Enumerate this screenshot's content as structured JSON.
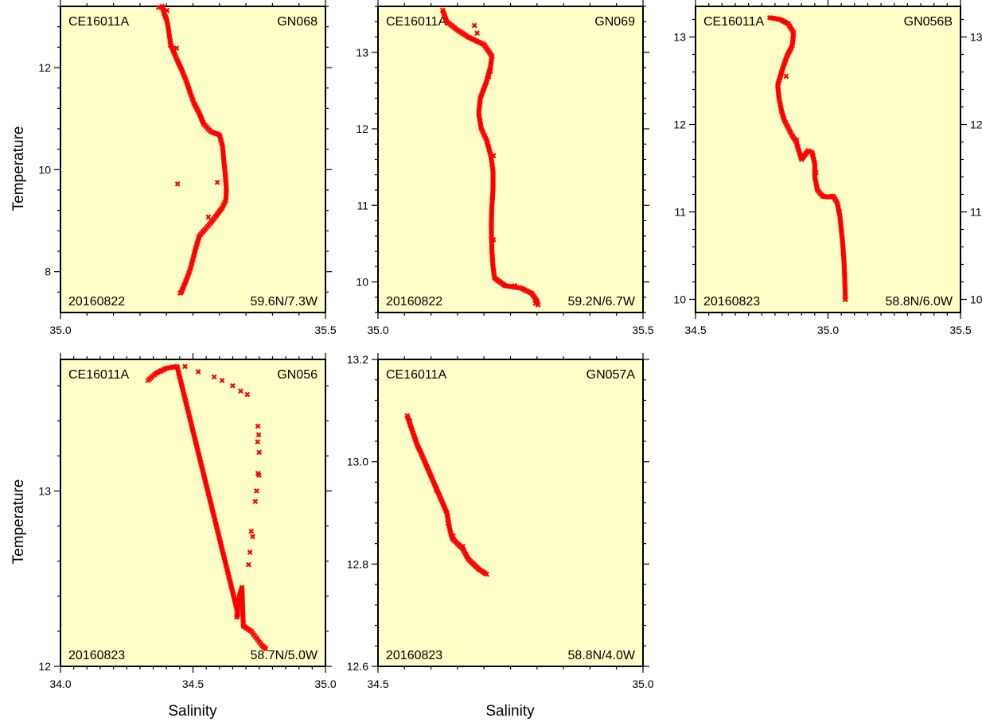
{
  "figure": {
    "ylabel_top": "Temperature",
    "ylabel_bottom": "Temperature",
    "xlabel_left": "Salinity",
    "xlabel_mid": "Salinity"
  },
  "colors": {
    "panel_bg": "#ffffc8",
    "marker": "#ff0000",
    "frame": "#000000"
  },
  "chart_data": [
    {
      "type": "scatter",
      "cruise": "CE16011A",
      "station": "GN068",
      "date": "20160822",
      "position": "59.6N/7.3W",
      "xlim": [
        35.0,
        35.5
      ],
      "ylim": [
        7.2,
        13.2
      ],
      "xticks": [
        35.0,
        35.5
      ],
      "xticklabels": [
        "35.0",
        "35.5"
      ],
      "yticks": [
        8,
        10,
        12
      ],
      "yticklabels": [
        "8",
        "10",
        "12"
      ],
      "yticks_right": false,
      "ctd": [
        [
          35.192,
          13.2
        ],
        [
          35.196,
          13.05
        ],
        [
          35.2,
          12.95
        ],
        [
          35.203,
          12.8
        ],
        [
          35.208,
          12.45
        ],
        [
          35.22,
          12.15
        ],
        [
          35.229,
          11.95
        ],
        [
          35.238,
          11.72
        ],
        [
          35.245,
          11.5
        ],
        [
          35.252,
          11.3
        ],
        [
          35.262,
          11.1
        ],
        [
          35.27,
          10.9
        ],
        [
          35.283,
          10.75
        ],
        [
          35.3,
          10.68
        ],
        [
          35.306,
          10.45
        ],
        [
          35.308,
          10.2
        ],
        [
          35.311,
          9.9
        ],
        [
          35.313,
          9.6
        ],
        [
          35.312,
          9.4
        ],
        [
          35.305,
          9.25
        ],
        [
          35.294,
          9.1
        ],
        [
          35.283,
          8.95
        ],
        [
          35.272,
          8.82
        ],
        [
          35.262,
          8.7
        ],
        [
          35.255,
          8.45
        ],
        [
          35.25,
          8.25
        ],
        [
          35.245,
          8.05
        ],
        [
          35.238,
          7.85
        ],
        [
          35.232,
          7.7
        ],
        [
          35.228,
          7.6
        ]
      ],
      "bottle": [
        [
          35.185,
          13.18
        ],
        [
          35.201,
          13.12
        ],
        [
          35.219,
          12.38
        ],
        [
          35.207,
          12.44
        ],
        [
          35.221,
          9.72
        ],
        [
          35.296,
          9.75
        ],
        [
          35.279,
          9.07
        ],
        [
          35.226,
          7.58
        ]
      ]
    },
    {
      "type": "scatter",
      "cruise": "CE16011A",
      "station": "GN069",
      "date": "20160822",
      "position": "59.2N/6.7W",
      "xlim": [
        35.0,
        35.5
      ],
      "ylim": [
        9.6,
        13.6
      ],
      "xticks": [
        35.0,
        35.5
      ],
      "xticklabels": [
        "35.0",
        "35.5"
      ],
      "yticks": [
        10,
        11,
        12,
        13
      ],
      "yticklabels": [
        "10",
        "11",
        "12",
        "13"
      ],
      "yticks_right": false,
      "ctd": [
        [
          35.122,
          13.55
        ],
        [
          35.13,
          13.4
        ],
        [
          35.148,
          13.3
        ],
        [
          35.17,
          13.2
        ],
        [
          35.2,
          13.1
        ],
        [
          35.215,
          12.95
        ],
        [
          35.212,
          12.8
        ],
        [
          35.204,
          12.6
        ],
        [
          35.193,
          12.4
        ],
        [
          35.19,
          12.2
        ],
        [
          35.195,
          12.0
        ],
        [
          35.205,
          11.85
        ],
        [
          35.213,
          11.65
        ],
        [
          35.217,
          11.45
        ],
        [
          35.217,
          11.2
        ],
        [
          35.215,
          11.0
        ],
        [
          35.214,
          10.8
        ],
        [
          35.214,
          10.6
        ],
        [
          35.215,
          10.4
        ],
        [
          35.217,
          10.2
        ],
        [
          35.22,
          10.05
        ],
        [
          35.24,
          9.95
        ],
        [
          35.27,
          9.92
        ],
        [
          35.29,
          9.85
        ],
        [
          35.3,
          9.75
        ],
        [
          35.302,
          9.7
        ]
      ],
      "bottle": [
        [
          35.182,
          13.35
        ],
        [
          35.187,
          13.25
        ],
        [
          35.212,
          12.75
        ],
        [
          35.209,
          12.68
        ],
        [
          35.218,
          11.65
        ],
        [
          35.218,
          10.55
        ],
        [
          35.258,
          9.95
        ],
        [
          35.297,
          9.72
        ]
      ]
    },
    {
      "type": "scatter",
      "cruise": "CE16011A",
      "station": "GN056B",
      "date": "20160823",
      "position": "58.8N/6.0W",
      "xlim": [
        34.5,
        35.5
      ],
      "ylim": [
        9.85,
        13.35
      ],
      "xticks": [
        34.5,
        35.0,
        35.5
      ],
      "xticklabels": [
        "34.5",
        "35.0",
        "35.5"
      ],
      "yticks": [
        10,
        11,
        12,
        13
      ],
      "yticklabels": [
        "10",
        "11",
        "12",
        "13"
      ],
      "yticks_right": true,
      "ctd": [
        [
          34.78,
          13.22
        ],
        [
          34.82,
          13.2
        ],
        [
          34.85,
          13.15
        ],
        [
          34.87,
          13.05
        ],
        [
          34.865,
          12.9
        ],
        [
          34.845,
          12.78
        ],
        [
          34.83,
          12.65
        ],
        [
          34.82,
          12.55
        ],
        [
          34.81,
          12.45
        ],
        [
          34.815,
          12.3
        ],
        [
          34.825,
          12.15
        ],
        [
          34.835,
          12.05
        ],
        [
          34.86,
          11.9
        ],
        [
          34.88,
          11.8
        ],
        [
          34.9,
          11.6
        ],
        [
          34.925,
          11.7
        ],
        [
          34.94,
          11.68
        ],
        [
          34.95,
          11.55
        ],
        [
          34.95,
          11.4
        ],
        [
          34.96,
          11.25
        ],
        [
          34.98,
          11.18
        ],
        [
          35.0,
          11.17
        ],
        [
          35.02,
          11.18
        ],
        [
          35.035,
          11.1
        ],
        [
          35.045,
          10.95
        ],
        [
          35.05,
          10.8
        ],
        [
          35.055,
          10.65
        ],
        [
          35.06,
          10.45
        ],
        [
          35.063,
          10.25
        ],
        [
          35.065,
          10.05
        ],
        [
          35.066,
          10.0
        ]
      ],
      "bottle": [
        [
          34.868,
          12.98
        ],
        [
          34.842,
          12.55
        ],
        [
          34.882,
          11.82
        ],
        [
          34.955,
          11.45
        ],
        [
          35.043,
          11.0
        ],
        [
          35.064,
          10.0
        ]
      ]
    },
    {
      "type": "scatter",
      "cruise": "CE16011A",
      "station": "GN056",
      "date": "20160823",
      "position": "58.7N/5.0W",
      "xlim": [
        34.0,
        35.0
      ],
      "ylim": [
        12.0,
        13.75
      ],
      "xticks": [
        34.0,
        34.5,
        35.0
      ],
      "xticklabels": [
        "34.0",
        "34.5",
        "35.0"
      ],
      "yticks": [
        12,
        13
      ],
      "yticklabels": [
        "12",
        "13"
      ],
      "yticks_right": false,
      "ctd": [
        [
          34.33,
          13.63
        ],
        [
          34.36,
          13.67
        ],
        [
          34.4,
          13.7
        ],
        [
          34.44,
          13.71
        ],
        [
          34.67,
          12.3
        ],
        [
          34.665,
          12.28
        ],
        [
          34.67,
          12.34
        ],
        [
          34.675,
          12.4
        ],
        [
          34.685,
          12.45
        ],
        [
          34.69,
          12.23
        ],
        [
          34.72,
          12.2
        ],
        [
          34.74,
          12.16
        ],
        [
          34.76,
          12.12
        ],
        [
          34.775,
          12.1
        ]
      ],
      "bottle": [
        [
          34.47,
          13.71
        ],
        [
          34.52,
          13.68
        ],
        [
          34.58,
          13.65
        ],
        [
          34.61,
          13.63
        ],
        [
          34.65,
          13.6
        ],
        [
          34.68,
          13.57
        ],
        [
          34.705,
          13.55
        ],
        [
          34.745,
          13.37
        ],
        [
          34.748,
          13.32
        ],
        [
          34.744,
          13.28
        ],
        [
          34.75,
          13.22
        ],
        [
          34.745,
          13.1
        ],
        [
          34.749,
          13.09
        ],
        [
          34.74,
          13.0
        ],
        [
          34.735,
          12.94
        ],
        [
          34.72,
          12.77
        ],
        [
          34.725,
          12.74
        ],
        [
          34.715,
          12.65
        ],
        [
          34.71,
          12.58
        ]
      ]
    },
    {
      "type": "scatter",
      "cruise": "CE16011A",
      "station": "GN057A",
      "date": "20160823",
      "position": "58.8N/4.0W",
      "xlim": [
        34.5,
        35.0
      ],
      "ylim": [
        12.6,
        13.2
      ],
      "xticks": [
        34.5,
        35.0
      ],
      "xticklabels": [
        "34.5",
        "35.0"
      ],
      "yticks": [
        12.6,
        12.8,
        13.0,
        13.2
      ],
      "yticklabels": [
        "12.6",
        "12.8",
        "13.0",
        "13.2"
      ],
      "yticks_right": false,
      "ctd": [
        [
          34.555,
          13.09
        ],
        [
          34.565,
          13.06
        ],
        [
          34.575,
          13.03
        ],
        [
          34.58,
          13.02
        ],
        [
          34.63,
          12.9
        ],
        [
          34.635,
          12.87
        ],
        [
          34.64,
          12.85
        ],
        [
          34.65,
          12.84
        ],
        [
          34.66,
          12.83
        ],
        [
          34.67,
          12.81
        ],
        [
          34.68,
          12.8
        ],
        [
          34.69,
          12.79
        ],
        [
          34.705,
          12.78
        ]
      ],
      "bottle": [
        [
          34.56,
          13.08
        ],
        [
          34.57,
          13.045
        ],
        [
          34.61,
          12.945
        ],
        [
          34.632,
          12.88
        ],
        [
          34.642,
          12.855
        ],
        [
          34.66,
          12.835
        ]
      ]
    }
  ]
}
